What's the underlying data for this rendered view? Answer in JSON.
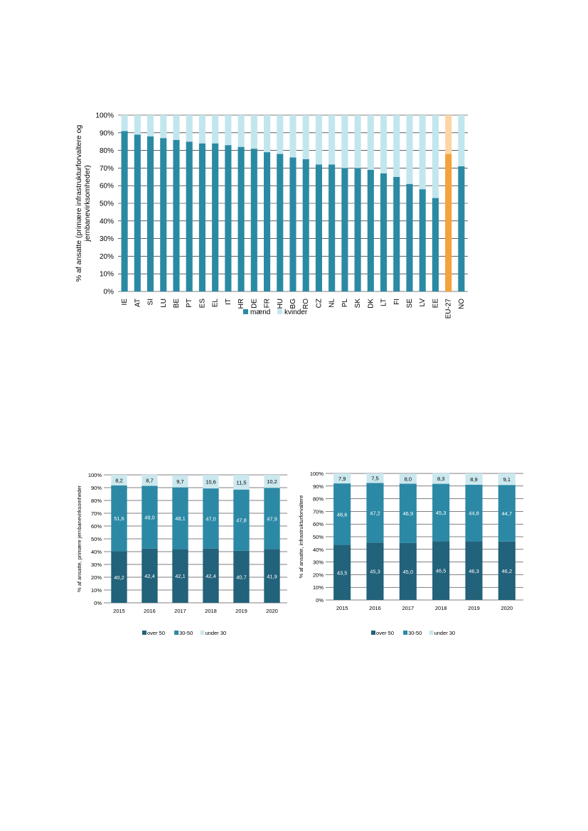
{
  "colors": {
    "men": "#2a8aa3",
    "women": "#c2e6ee",
    "eu_men": "#f4a23c",
    "eu_women": "#fbd6a4",
    "over50": "#22627a",
    "age30_50": "#2b89a6",
    "under30": "#cbe8ef",
    "grid": "#000000",
    "bar_label": "#ffffff"
  },
  "chart_data": [
    {
      "type": "bar",
      "stacked": true,
      "ylabel": "% af ansatte (primære infrastrukturforvaltere og jernbanevirksomheder)",
      "y_ticks": [
        "0%",
        "10%",
        "20%",
        "30%",
        "40%",
        "50%",
        "60%",
        "70%",
        "80%",
        "90%",
        "100%"
      ],
      "ylim": [
        0,
        100
      ],
      "categories": [
        "IE",
        "AT",
        "SI",
        "LU",
        "BE",
        "PT",
        "ES",
        "EL",
        "IT",
        "HR",
        "DE",
        "FR",
        "HU",
        "BG",
        "RO",
        "CZ",
        "NL",
        "PL",
        "SK",
        "DK",
        "LT",
        "FI",
        "SE",
        "LV",
        "EE",
        "EU-27",
        "NO"
      ],
      "highlight": "EU-27",
      "series": [
        {
          "name": "mænd",
          "values": [
            91,
            89,
            88,
            87,
            86,
            85,
            84,
            84,
            83,
            82,
            81,
            79,
            78,
            76,
            75,
            72,
            72,
            70,
            70,
            69,
            67,
            65,
            61,
            58,
            53,
            78,
            71
          ]
        },
        {
          "name": "kvinder",
          "values": [
            9,
            11,
            12,
            13,
            14,
            15,
            16,
            16,
            17,
            18,
            19,
            21,
            22,
            24,
            25,
            28,
            28,
            30,
            30,
            31,
            33,
            35,
            39,
            42,
            47,
            22,
            29
          ]
        }
      ],
      "legend_position": "bottom",
      "grid": true
    },
    {
      "type": "bar",
      "stacked": true,
      "ylabel": "% af ansatte, primære jernbanevirksomheder",
      "y_ticks": [
        "0%",
        "10%",
        "20%",
        "30%",
        "40%",
        "50%",
        "60%",
        "70%",
        "80%",
        "90%",
        "100%"
      ],
      "ylim": [
        0,
        100
      ],
      "categories": [
        "2015",
        "2016",
        "2017",
        "2018",
        "2019",
        "2020"
      ],
      "series": [
        {
          "name": "over 50",
          "values": [
            40.2,
            42.4,
            42.1,
            42.4,
            40.7,
            41.9
          ],
          "labels": [
            "40,2",
            "42,4",
            "42,1",
            "42,4",
            "40,7",
            "41,9"
          ]
        },
        {
          "name": "30-50",
          "values": [
            51.6,
            49.0,
            48.1,
            47.0,
            47.8,
            47.9
          ],
          "labels": [
            "51,6",
            "49,0",
            "48,1",
            "47,0",
            "47,8",
            "47,9"
          ]
        },
        {
          "name": "under 30",
          "values": [
            8.2,
            8.7,
            9.7,
            10.6,
            11.5,
            10.2
          ],
          "labels": [
            "8,2",
            "8,7",
            "9,7",
            "10,6",
            "11,5",
            "10,2"
          ]
        }
      ],
      "legend_position": "bottom",
      "grid": true
    },
    {
      "type": "bar",
      "stacked": true,
      "ylabel": "% af ansatte, infrastrukturforvaltere",
      "y_ticks": [
        "0%",
        "10%",
        "20%",
        "30%",
        "40%",
        "50%",
        "60%",
        "70%",
        "80%",
        "90%",
        "100%"
      ],
      "ylim": [
        0,
        100
      ],
      "categories": [
        "2015",
        "2016",
        "2017",
        "2018",
        "2019",
        "2020"
      ],
      "series": [
        {
          "name": "over 50",
          "values": [
            43.5,
            45.3,
            45.0,
            46.5,
            46.3,
            46.2
          ],
          "labels": [
            "43,5",
            "45,3",
            "45,0",
            "46,5",
            "46,3",
            "46,2"
          ]
        },
        {
          "name": "30-50",
          "values": [
            48.6,
            47.2,
            46.9,
            45.3,
            44.8,
            44.7
          ],
          "labels": [
            "48,6",
            "47,2",
            "46,9",
            "45,3",
            "44,8",
            "44,7"
          ]
        },
        {
          "name": "under 30",
          "values": [
            7.9,
            7.5,
            8.0,
            8.3,
            8.9,
            9.1
          ],
          "labels": [
            "7,9",
            "7,5",
            "8,0",
            "8,3",
            "8,9",
            "9,1"
          ]
        }
      ],
      "legend_position": "bottom",
      "grid": true
    }
  ]
}
